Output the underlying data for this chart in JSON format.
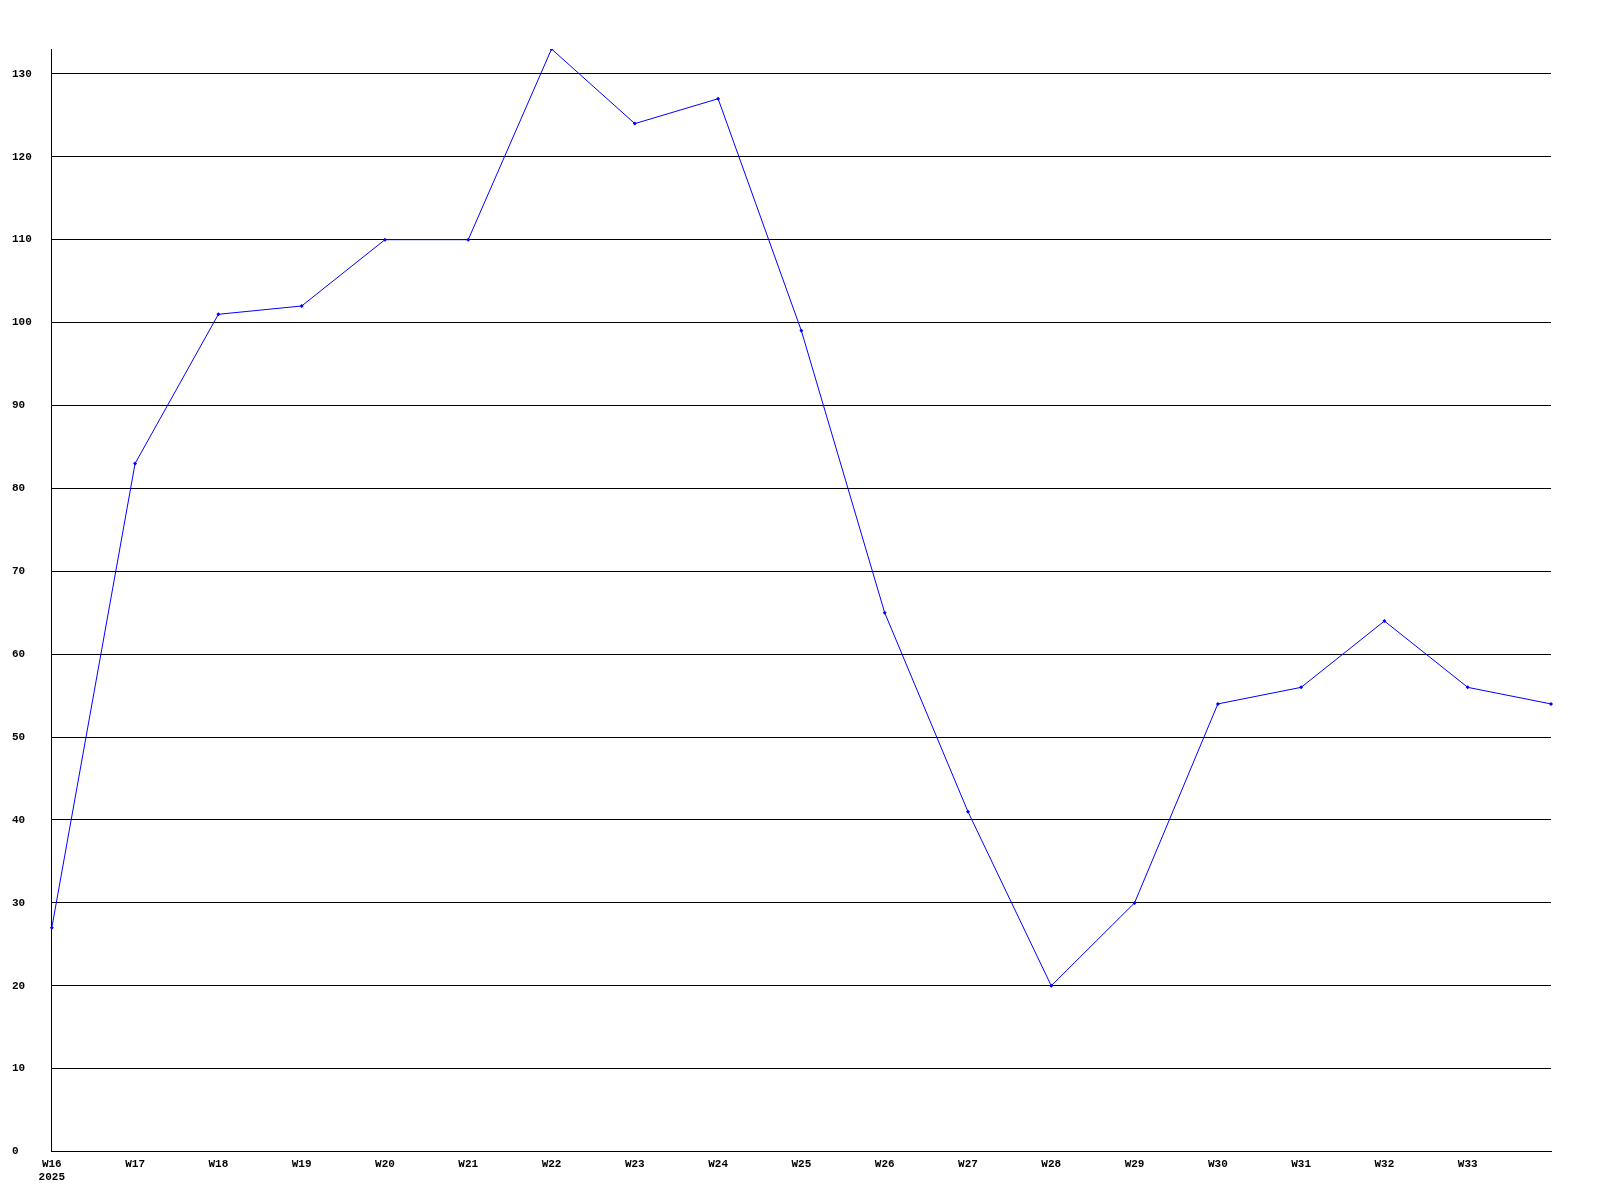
{
  "chart_data": {
    "type": "line",
    "categories": [
      "W16\n2025",
      "W17",
      "W18",
      "W19",
      "W20",
      "W21",
      "W22",
      "W23",
      "W24",
      "W25",
      "W26",
      "W27",
      "W28",
      "W29",
      "W30",
      "W31",
      "W32",
      "W33",
      null
    ],
    "series": [
      {
        "color": "#0000ff",
        "values": [
          27,
          83,
          101,
          102,
          110,
          110,
          133,
          124,
          127,
          99,
          65,
          41,
          20,
          30,
          54,
          56,
          64,
          56,
          54
        ]
      }
    ],
    "ylim": [
      0,
      133
    ],
    "yticks": [
      0,
      10,
      20,
      30,
      40,
      50,
      60,
      70,
      80,
      90,
      100,
      110,
      120,
      130
    ],
    "grid": "y",
    "legend": false,
    "marker": "diamond",
    "line_style": "solid"
  }
}
